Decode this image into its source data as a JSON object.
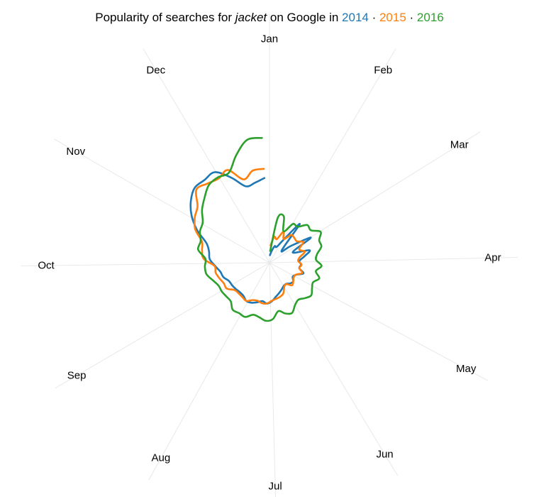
{
  "chart_data": {
    "type": "line",
    "subtype": "radial",
    "title_parts": {
      "before": "Popularity of searches for ",
      "term": "jacket",
      "middle": " on Google in ",
      "sep": " · "
    },
    "angle_axis": [
      "Jan",
      "Feb",
      "Mar",
      "Apr",
      "May",
      "Jun",
      "Jul",
      "Aug",
      "Sep",
      "Oct",
      "Nov",
      "Dec"
    ],
    "radius_range": [
      0,
      100
    ],
    "grid": true,
    "legend": "inline-title",
    "series": [
      {
        "name": "2014",
        "color": "#1f77b4",
        "values": [
          5.5,
          8.6,
          12.7,
          12.6,
          19.1,
          35.9,
          12.6,
          19.8,
          35.3,
          18.6,
          30.6,
          26.0,
          21.9,
          23.1,
          22.1,
          26.0,
          21.4,
          19.8,
          22.0,
          21.4,
          19.6,
          19.9,
          21.5,
          23.3,
          25.3,
          28.2,
          29.9,
          28.5,
          30.3,
          32.0,
          32.7,
          30.8,
          30.5,
          31.2,
          31.9,
          32.5,
          35.3,
          36.5,
          39.8,
          43.8,
          44.9,
          48.3,
          58.0,
          66.5,
          73.0,
          77.3,
          76.8,
          77.2,
          68.1,
          58.4,
          59.3,
          61.9
        ]
      },
      {
        "name": "2015",
        "color": "#ff7f0e",
        "values": [
          12.6,
          19.3,
          18.0,
          24.9,
          20.2,
          25.7,
          25.6,
          25.4,
          28.9,
          23.8,
          27.1,
          22.5,
          21.0,
          23.5,
          22.1,
          25.1,
          21.2,
          20.6,
          22.1,
          23.3,
          19.8,
          20.8,
          24.6,
          26.0,
          26.8,
          27.8,
          29.8,
          30.1,
          29.1,
          29.9,
          32.6,
          32.0,
          31.8,
          32.4,
          36.5,
          36.6,
          38.3,
          40.0,
          40.2,
          48.2,
          50.1,
          51.7,
          59.5,
          63.8,
          66.8,
          75.5,
          73.4,
          71.8,
          74.2,
          63.7,
          68.3,
          68.6
        ]
      },
      {
        "name": "2016",
        "color": "#2ca02c",
        "values": [
          8.6,
          33.1,
          35.3,
          25.1,
          33.1,
          33.3,
          38.9,
          38.4,
          43.6,
          39.8,
          39.7,
          35.4,
          34.1,
          38.1,
          34.4,
          38.1,
          34.9,
          36.3,
          38.7,
          36.6,
          34.3,
          36.1,
          40.2,
          38.8,
          35.9,
          41.2,
          42.5,
          40.6,
          39.8,
          43.4,
          43.0,
          43.6,
          40.0,
          40.0,
          40.7,
          40.8,
          43.3,
          46.8,
          47.3,
          46.9,
          53.0,
          52.7,
          55.7,
          57.0,
          62.6,
          67.1,
          71.9,
          72.8,
          72.1,
          82.0,
          91.1,
          91.2
        ]
      }
    ]
  }
}
